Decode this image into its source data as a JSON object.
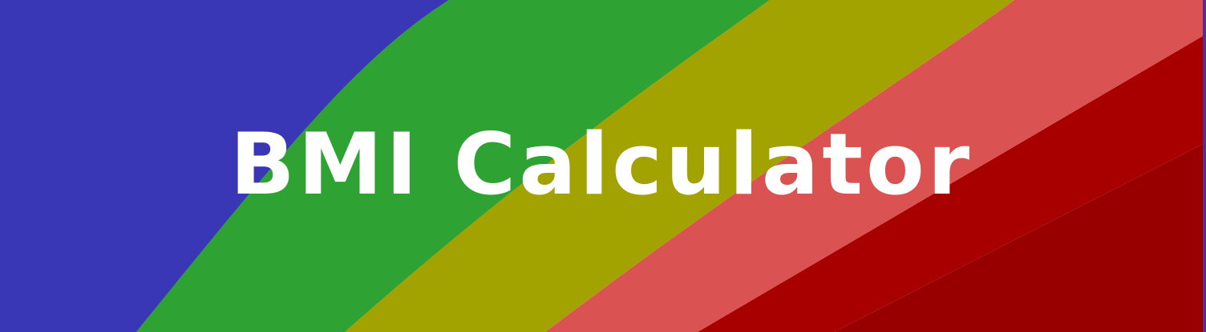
{
  "banner": {
    "title": "BMI Calculator",
    "colors": {
      "blue": "#3937b5",
      "green": "#2ea334",
      "olive": "#a2a200",
      "salmon": "#db5252",
      "red": "#a80000",
      "dark_red": "#980000",
      "edge": "#5b2c88",
      "text": "#ffffff"
    }
  }
}
